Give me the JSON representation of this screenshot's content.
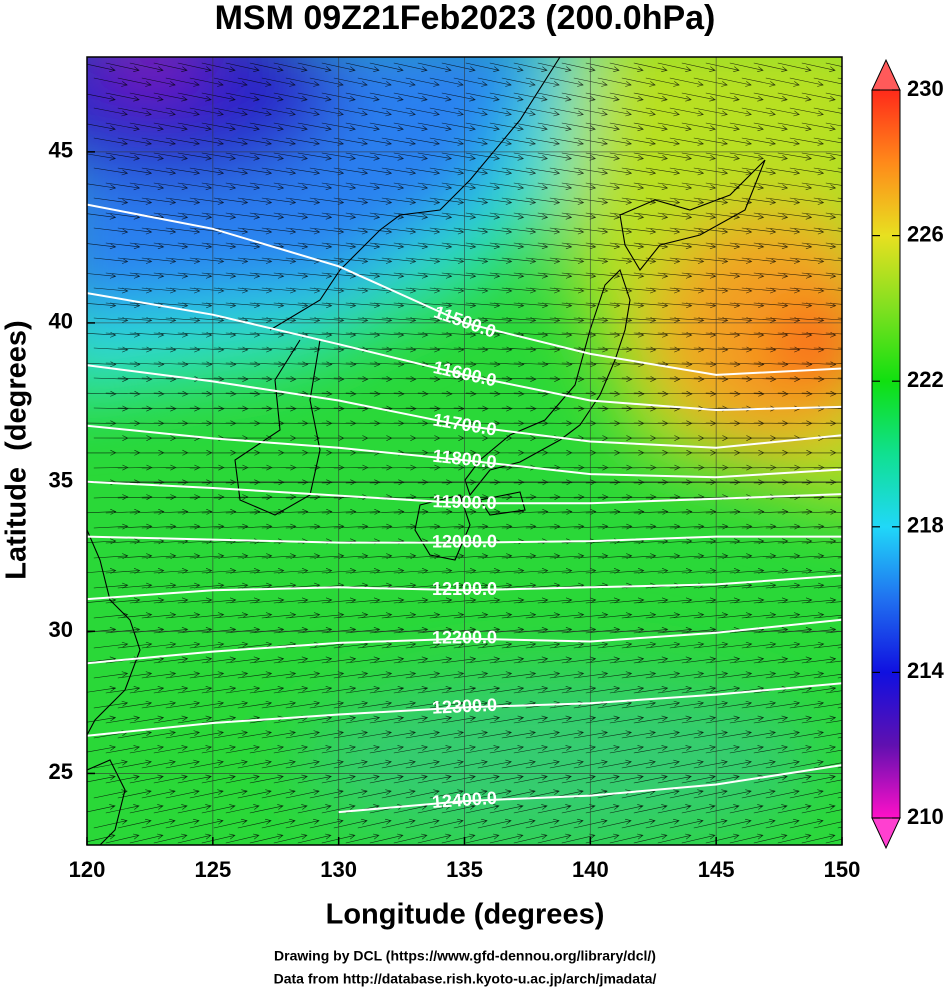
{
  "chart_data": {
    "type": "contour",
    "title": "MSM 09Z21Feb2023 (200.0hPa)",
    "xlabel": "Longitude (degrees)",
    "ylabel": "Latitude  (degrees)",
    "projection": "mercator",
    "xlim": [
      120,
      150
    ],
    "ylim": [
      22.4,
      47.6
    ],
    "xticks": [
      120,
      125,
      130,
      135,
      140,
      145,
      150
    ],
    "yticks": [
      25,
      30,
      35,
      40,
      45
    ],
    "grid": true,
    "contour_color": "#ffffff",
    "contours": [
      {
        "label": "11500.0",
        "x": [
          120,
          125,
          130,
          135,
          140,
          145,
          150
        ],
        "y": [
          43.5,
          42.8,
          41.7,
          40.0,
          39.05,
          38.4,
          38.6
        ]
      },
      {
        "label": "11600.0",
        "x": [
          120,
          125,
          130,
          135,
          140,
          145,
          150
        ],
        "y": [
          40.9,
          40.25,
          39.35,
          38.4,
          37.6,
          37.3,
          37.4
        ]
      },
      {
        "label": "11700.0",
        "x": [
          120,
          125,
          130,
          135,
          140,
          145,
          150
        ],
        "y": [
          38.7,
          38.2,
          37.6,
          36.8,
          36.3,
          36.1,
          36.5
        ]
      },
      {
        "label": "11800.0",
        "x": [
          120,
          125,
          130,
          135,
          140,
          145,
          150
        ],
        "y": [
          36.8,
          36.4,
          36.1,
          35.7,
          35.25,
          35.15,
          35.4
        ]
      },
      {
        "label": "11900.0",
        "x": [
          120,
          125,
          130,
          135,
          140,
          145,
          150
        ],
        "y": [
          35.0,
          34.8,
          34.55,
          34.3,
          34.3,
          34.45,
          34.6
        ]
      },
      {
        "label": "12000.0",
        "x": [
          120,
          125,
          130,
          135,
          140,
          145,
          150
        ],
        "y": [
          33.2,
          33.1,
          33.0,
          33.0,
          33.05,
          33.2,
          33.2
        ]
      },
      {
        "label": "12100.0",
        "x": [
          120,
          125,
          130,
          135,
          140,
          145,
          150
        ],
        "y": [
          31.1,
          31.4,
          31.5,
          31.4,
          31.5,
          31.6,
          31.9
        ]
      },
      {
        "label": "12200.0",
        "x": [
          120,
          125,
          130,
          135,
          140,
          145,
          150
        ],
        "y": [
          28.9,
          29.3,
          29.6,
          29.75,
          29.65,
          29.95,
          30.4
        ]
      },
      {
        "label": "12300.0",
        "x": [
          120,
          125,
          130,
          135,
          140,
          145,
          150
        ],
        "y": [
          26.35,
          26.8,
          27.1,
          27.35,
          27.5,
          27.8,
          28.2
        ]
      },
      {
        "label": "12400.0",
        "x": [
          120,
          125,
          130,
          135,
          140,
          145,
          150
        ],
        "y": [
          null,
          null,
          23.6,
          24.0,
          24.2,
          24.6,
          25.3
        ]
      }
    ],
    "colorbar": {
      "clim": [
        210,
        230
      ],
      "ticks": [
        210,
        214,
        218,
        222,
        226,
        230
      ]
    }
  },
  "credits": [
    "Drawing by DCL (https://www.gfd-dennou.org/library/dcl/)",
    "Data from http://database.rish.kyoto-u.ac.jp/arch/jmadata/"
  ]
}
